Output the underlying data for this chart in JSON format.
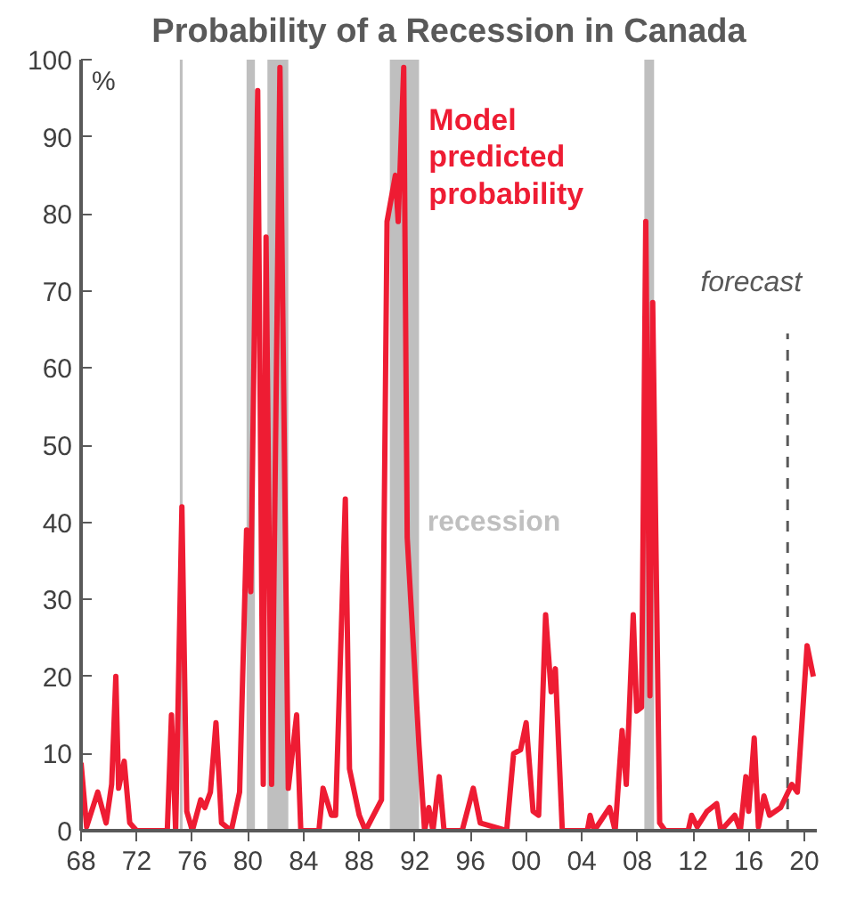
{
  "chart_data": {
    "type": "line",
    "title": "Probability of a Recession in Canada",
    "ylabel": "%",
    "x": [
      1968.0,
      1968.4,
      1969.2,
      1969.8,
      1970.2,
      1970.5,
      1970.7,
      1971.1,
      1971.5,
      1972.0,
      1974.2,
      1974.5,
      1974.8,
      1975.25,
      1975.6,
      1976.0,
      1976.6,
      1976.9,
      1977.3,
      1977.7,
      1978.1,
      1978.8,
      1979.4,
      1979.9,
      1980.2,
      1980.7,
      1981.1,
      1981.3,
      1981.7,
      1982.3,
      1982.9,
      1983.5,
      1983.8,
      1985.1,
      1985.4,
      1986.0,
      1986.3,
      1987.0,
      1987.3,
      1988.0,
      1988.45,
      1989.6,
      1990.0,
      1990.6,
      1990.8,
      1991.2,
      1991.45,
      1992.3,
      1992.7,
      1993.0,
      1993.3,
      1993.75,
      1994.1,
      1995.4,
      1996.2,
      1996.7,
      1998.6,
      1999.1,
      1999.6,
      2000.0,
      2000.5,
      2000.9,
      2001.4,
      2001.8,
      2002.1,
      2002.6,
      2004.4,
      2004.6,
      2004.9,
      2006.0,
      2006.4,
      2006.9,
      2007.2,
      2007.7,
      2007.95,
      2008.3,
      2008.6,
      2008.9,
      2009.1,
      2009.6,
      2010.0,
      2011.65,
      2011.9,
      2012.3,
      2013.0,
      2013.7,
      2014.0,
      2015.0,
      2015.4,
      2015.8,
      2016.0,
      2016.4,
      2016.7,
      2017.1,
      2017.5,
      2018.3,
      2018.7,
      2019.1,
      2019.5,
      2020.2,
      2020.65
    ],
    "series": [
      {
        "name": "Model predicted probability",
        "color": "#ee1c33",
        "values": [
          8.8,
          0.5,
          5,
          1,
          6,
          20,
          5.5,
          9,
          1,
          0,
          0,
          15,
          0,
          42,
          2.5,
          0,
          4,
          3,
          5,
          14,
          1,
          0,
          5,
          39,
          31,
          96,
          6,
          77,
          6,
          99,
          5.5,
          15,
          0,
          0,
          5.5,
          2,
          2,
          43,
          8,
          2,
          0,
          4,
          79,
          85,
          79,
          99,
          38,
          11,
          0,
          3,
          0,
          7,
          0,
          0,
          5.5,
          1,
          0,
          10,
          10.5,
          14,
          2.5,
          2,
          28,
          18,
          21,
          0,
          0,
          2,
          0,
          3,
          0,
          13,
          6,
          28,
          15.5,
          16,
          79,
          17.5,
          68.5,
          1,
          0,
          0,
          2,
          0.5,
          2.5,
          3.5,
          0,
          2,
          0,
          7,
          2.5,
          12,
          0.5,
          4.5,
          2,
          3,
          4.5,
          6,
          5,
          24,
          20
        ]
      }
    ],
    "xlim": [
      1968,
      2020.9
    ],
    "ylim": [
      0,
      100
    ],
    "xticks": [
      {
        "value": 1968,
        "label": "68"
      },
      {
        "value": 1972,
        "label": "72"
      },
      {
        "value": 1976,
        "label": "76"
      },
      {
        "value": 1980,
        "label": "80"
      },
      {
        "value": 1984,
        "label": "84"
      },
      {
        "value": 1988,
        "label": "88"
      },
      {
        "value": 1992,
        "label": "92"
      },
      {
        "value": 1996,
        "label": "96"
      },
      {
        "value": 2000,
        "label": "00"
      },
      {
        "value": 2004,
        "label": "04"
      },
      {
        "value": 2008,
        "label": "08"
      },
      {
        "value": 2012,
        "label": "12"
      },
      {
        "value": 2016,
        "label": "16"
      },
      {
        "value": 2020,
        "label": "20"
      }
    ],
    "yticks": [
      0,
      10,
      20,
      30,
      40,
      50,
      60,
      70,
      80,
      90,
      100
    ],
    "bands": [
      {
        "axis": "x",
        "from": 1975.1,
        "to": 1975.3,
        "color": "#bfbfbf"
      },
      {
        "axis": "x",
        "from": 1979.9,
        "to": 1980.5,
        "color": "#bfbfbf"
      },
      {
        "axis": "x",
        "from": 1981.4,
        "to": 1982.9,
        "color": "#bfbfbf"
      },
      {
        "axis": "x",
        "from": 1990.2,
        "to": 1992.3,
        "color": "#bfbfbf",
        "label": "recession"
      },
      {
        "axis": "x",
        "from": 2008.5,
        "to": 2009.2,
        "color": "#bfbfbf"
      }
    ],
    "ref_lines": [
      {
        "axis": "x",
        "value": 2018.8,
        "label": "forecast",
        "color": "#595959",
        "line_style": "dashed"
      }
    ],
    "grid": false,
    "legend": false
  }
}
